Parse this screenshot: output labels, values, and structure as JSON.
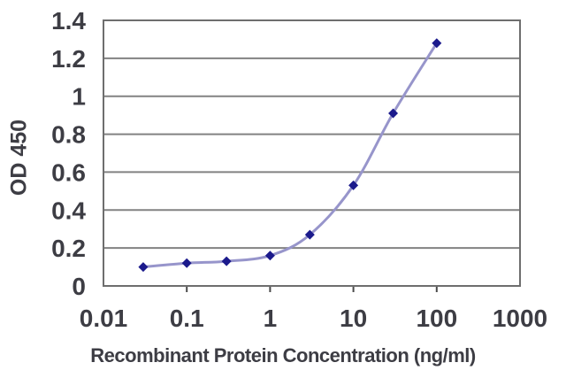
{
  "chart_data": {
    "type": "line",
    "title": "",
    "xlabel": "Recombinant Protein Concentration (ng/ml)",
    "ylabel": "OD 450",
    "x_scale": "log",
    "xlim": [
      0.01,
      1000
    ],
    "ylim": [
      0,
      1.4
    ],
    "x_ticks": [
      0.01,
      0.1,
      1,
      10,
      100,
      1000
    ],
    "x_tick_labels": [
      "0.01",
      "0.1",
      "1",
      "10",
      "100",
      "1000"
    ],
    "y_ticks": [
      0,
      0.2,
      0.4,
      0.6,
      0.8,
      1,
      1.2,
      1.4
    ],
    "y_tick_labels": [
      "0",
      "0.2",
      "0.4",
      "0.6",
      "0.8",
      "1",
      "1.2",
      "1.4"
    ],
    "grid": "horizontal",
    "legend": "none",
    "x": [
      0.03,
      0.1,
      0.3,
      1,
      3,
      10,
      30,
      100
    ],
    "series": [
      {
        "name": "OD 450",
        "values": [
          0.1,
          0.12,
          0.13,
          0.16,
          0.27,
          0.53,
          0.91,
          1.28
        ]
      }
    ],
    "marker": "diamond",
    "colors": {
      "line": "#9795cb",
      "marker": "#1b1a8c",
      "grid": "#828282",
      "border": "#6e6e6e",
      "tick": "#4a4a4a",
      "text": "#3d3d44",
      "background": "#ffffff"
    }
  }
}
